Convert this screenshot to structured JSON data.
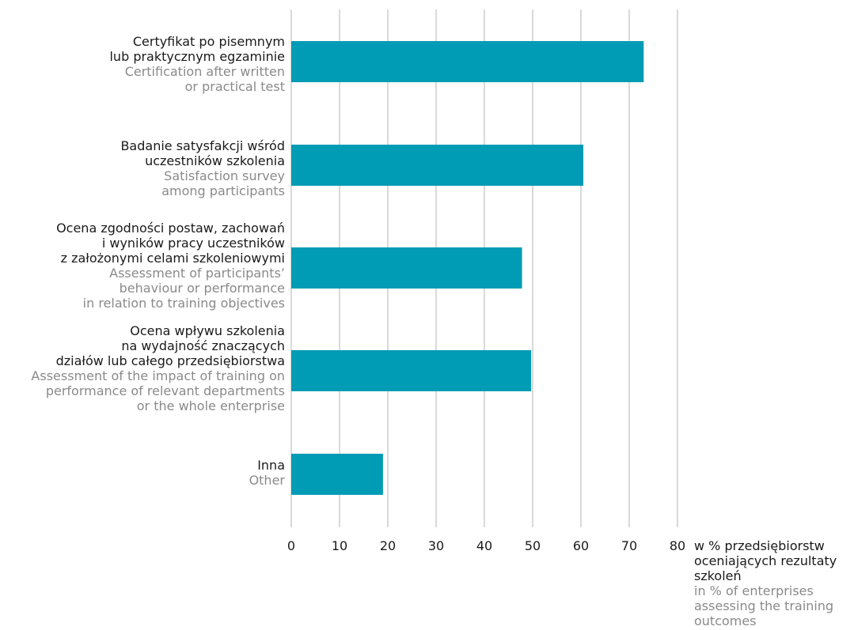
{
  "chart_data": {
    "type": "bar",
    "orientation": "horizontal",
    "categories": [
      {
        "pl": [
          "Certyfikat po pisemnym",
          "lub praktycznym egzaminie"
        ],
        "en": [
          "Certification after written",
          "or practical test"
        ]
      },
      {
        "pl": [
          "Badanie satysfakcji wśród",
          "uczestników szkolenia"
        ],
        "en": [
          "Satisfaction survey",
          "among participants"
        ]
      },
      {
        "pl": [
          "Ocena zgodności postaw, zachowań",
          "i wyników pracy uczestników",
          "z założonymi celami szkoleniowymi"
        ],
        "en": [
          "Assessment of participants’",
          "behaviour or performance",
          "in relation to training objectives"
        ]
      },
      {
        "pl": [
          "Ocena wpływu szkolenia",
          "na wydajność znaczących",
          "działów lub całego przedsiębiorstwa"
        ],
        "en": [
          "Assessment of the impact of training on",
          "performance of relevant departments",
          "or the whole enterprise"
        ]
      },
      {
        "pl": [
          "Inna"
        ],
        "en": [
          "Other"
        ]
      }
    ],
    "values": [
      73,
      60.5,
      47.8,
      49.7,
      19
    ],
    "xlim": [
      0,
      80
    ],
    "xticks": [
      "0",
      "10",
      "20",
      "30",
      "40",
      "50",
      "60",
      "70",
      "80"
    ],
    "xlabel_pl": [
      "w % przedsiębiorstw",
      "oceniających rezultaty",
      "szkoleń"
    ],
    "xlabel_en": [
      "in % of enterprises",
      "assessing the training",
      "outcomes"
    ],
    "grid": true,
    "colors": {
      "bar": "#009bb4",
      "grid": "#b3b3b3",
      "label_en": "#8a8a8a",
      "label_pl": "#1a1a1a"
    }
  }
}
